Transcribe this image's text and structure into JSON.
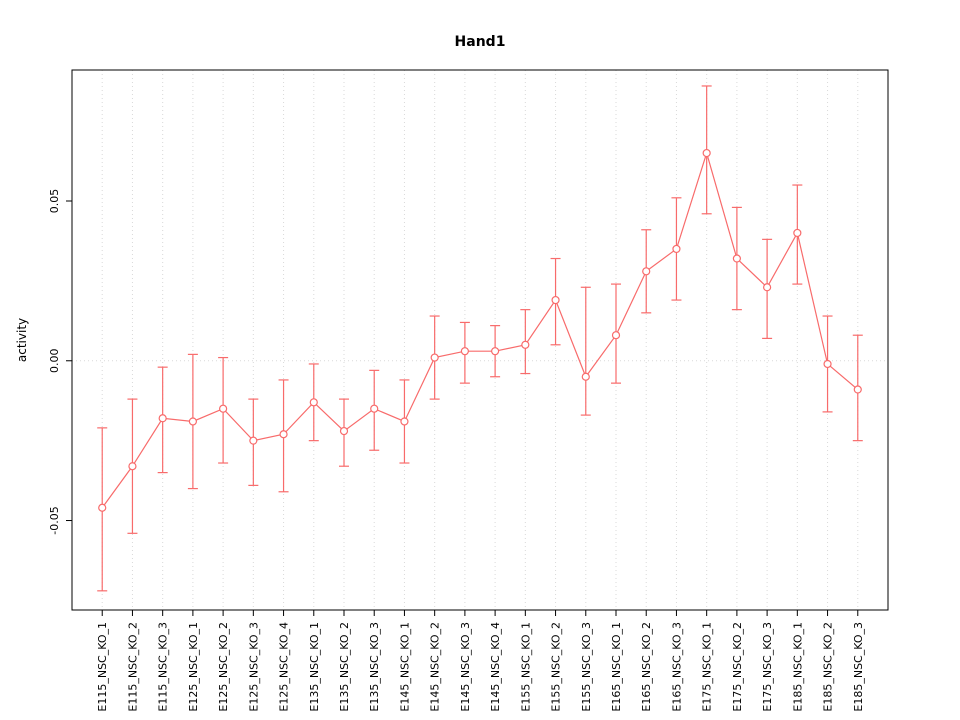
{
  "chart_data": {
    "type": "line",
    "title": "Hand1",
    "xlabel": "",
    "ylabel": "activity",
    "categories": [
      "E115_NSC_KO_1",
      "E115_NSC_KO_2",
      "E115_NSC_KO_3",
      "E125_NSC_KO_1",
      "E125_NSC_KO_2",
      "E125_NSC_KO_3",
      "E125_NSC_KO_4",
      "E135_NSC_KO_1",
      "E135_NSC_KO_2",
      "E135_NSC_KO_3",
      "E145_NSC_KO_1",
      "E145_NSC_KO_2",
      "E145_NSC_KO_3",
      "E145_NSC_KO_4",
      "E155_NSC_KO_1",
      "E155_NSC_KO_2",
      "E155_NSC_KO_3",
      "E165_NSC_KO_1",
      "E165_NSC_KO_2",
      "E165_NSC_KO_3",
      "E175_NSC_KO_1",
      "E175_NSC_KO_2",
      "E175_NSC_KO_3",
      "E185_NSC_KO_1",
      "E185_NSC_KO_2",
      "E185_NSC_KO_3"
    ],
    "values": [
      -0.046,
      -0.033,
      -0.018,
      -0.019,
      -0.015,
      -0.025,
      -0.023,
      -0.013,
      -0.022,
      -0.015,
      -0.019,
      0.001,
      0.003,
      0.003,
      0.005,
      0.019,
      -0.005,
      0.008,
      0.028,
      0.035,
      0.065,
      0.032,
      0.023,
      0.04,
      -0.001,
      -0.009
    ],
    "error_high": [
      -0.021,
      -0.012,
      -0.002,
      0.002,
      0.001,
      -0.012,
      -0.006,
      -0.001,
      -0.012,
      -0.003,
      -0.006,
      0.014,
      0.012,
      0.011,
      0.016,
      0.032,
      0.023,
      0.024,
      0.041,
      0.051,
      0.086,
      0.048,
      0.038,
      0.055,
      0.014,
      0.008
    ],
    "error_low": [
      -0.072,
      -0.054,
      -0.035,
      -0.04,
      -0.032,
      -0.039,
      -0.041,
      -0.025,
      -0.033,
      -0.028,
      -0.032,
      -0.012,
      -0.007,
      -0.005,
      -0.004,
      0.005,
      -0.017,
      -0.007,
      0.015,
      0.019,
      0.046,
      0.016,
      0.007,
      0.024,
      -0.016,
      -0.025
    ],
    "yticks": [
      -0.05,
      0,
      0.05
    ],
    "ytick_labels": [
      "-0.05",
      "0.00",
      "0.05"
    ],
    "ylim": [
      -0.078,
      0.091
    ],
    "grid": "vertical dotted at each category, horizontal dotted at 0",
    "legend": "none",
    "colors": {
      "series": "#f86b6b",
      "grid": "#d9d9d9",
      "axis": "#000000",
      "background": "#ffffff"
    }
  }
}
